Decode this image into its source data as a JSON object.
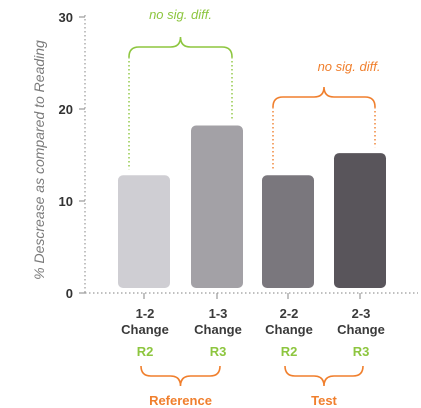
{
  "chart_data": {
    "type": "bar",
    "ylabel": "% Descrease as compared to Reading",
    "ylim": [
      0,
      30
    ],
    "yticks": [
      0,
      10,
      20,
      30
    ],
    "grid": false,
    "categories": [
      {
        "line1": "1-2",
        "line2": "Change",
        "tag": "R2"
      },
      {
        "line1": "1-3",
        "line2": "Change",
        "tag": "R3"
      },
      {
        "line1": "2-2",
        "line2": "Change",
        "tag": "R2"
      },
      {
        "line1": "2-3",
        "line2": "Change",
        "tag": "R3"
      }
    ],
    "values": [
      12.8,
      18.2,
      12.8,
      15.2
    ],
    "bar_colors": [
      "#cfced3",
      "#a3a1a6",
      "#7a777d",
      "#59555b"
    ],
    "tag_color": "#8dc63f",
    "annotations": [
      {
        "text": "no sig. diff.",
        "from": 0,
        "to": 1,
        "color": "#8dc63f"
      },
      {
        "text": "no sig. diff.",
        "from": 2,
        "to": 3,
        "color": "#f07f2d"
      }
    ],
    "groups": [
      {
        "label": "Reference",
        "from": 0,
        "to": 1,
        "color": "#f07f2d"
      },
      {
        "label": "Test",
        "from": 2,
        "to": 3,
        "color": "#f07f2d"
      }
    ]
  }
}
